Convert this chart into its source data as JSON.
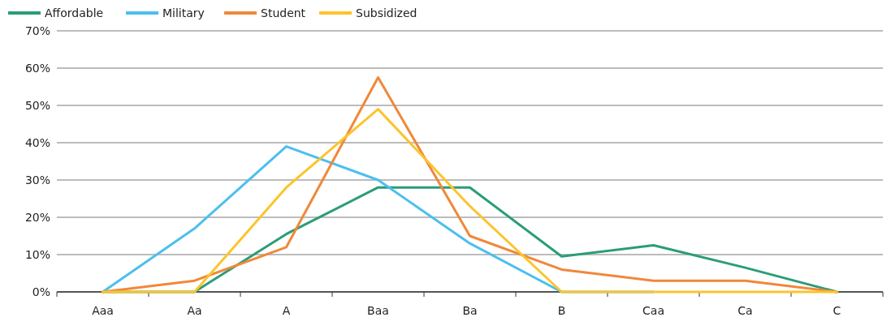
{
  "chart_data": {
    "type": "line",
    "categories": [
      "Aaa",
      "Aa",
      "A",
      "Baa",
      "Ba",
      "B",
      "Caa",
      "Ca",
      "C"
    ],
    "series": [
      {
        "name": "Affordable",
        "color": "#2a9d78",
        "values": [
          0,
          0,
          15.5,
          28,
          28,
          9.5,
          12.5,
          6.5,
          0
        ]
      },
      {
        "name": "Military",
        "color": "#4bbfef",
        "values": [
          0,
          17,
          39,
          30,
          13,
          0,
          0,
          null,
          null
        ]
      },
      {
        "name": "Student",
        "color": "#f0883a",
        "values": [
          0,
          3,
          12,
          57.5,
          15,
          6,
          3,
          3,
          0
        ]
      },
      {
        "name": "Subsidized",
        "color": "#fcc42c",
        "values": [
          0,
          0,
          28,
          49,
          23,
          0,
          0,
          0,
          0
        ]
      }
    ],
    "ylim": [
      0,
      70
    ],
    "yticks": [
      {
        "value": 0,
        "label": "0%"
      },
      {
        "value": 10,
        "label": "10%"
      },
      {
        "value": 20,
        "label": "20%"
      },
      {
        "value": 30,
        "label": "30%"
      },
      {
        "value": 40,
        "label": "40%"
      },
      {
        "value": 50,
        "label": "50%"
      },
      {
        "value": 60,
        "label": "60%"
      },
      {
        "value": 70,
        "label": "70%"
      }
    ],
    "grid": "y",
    "legend": "top left",
    "marker": "none",
    "line_style": "solid"
  }
}
